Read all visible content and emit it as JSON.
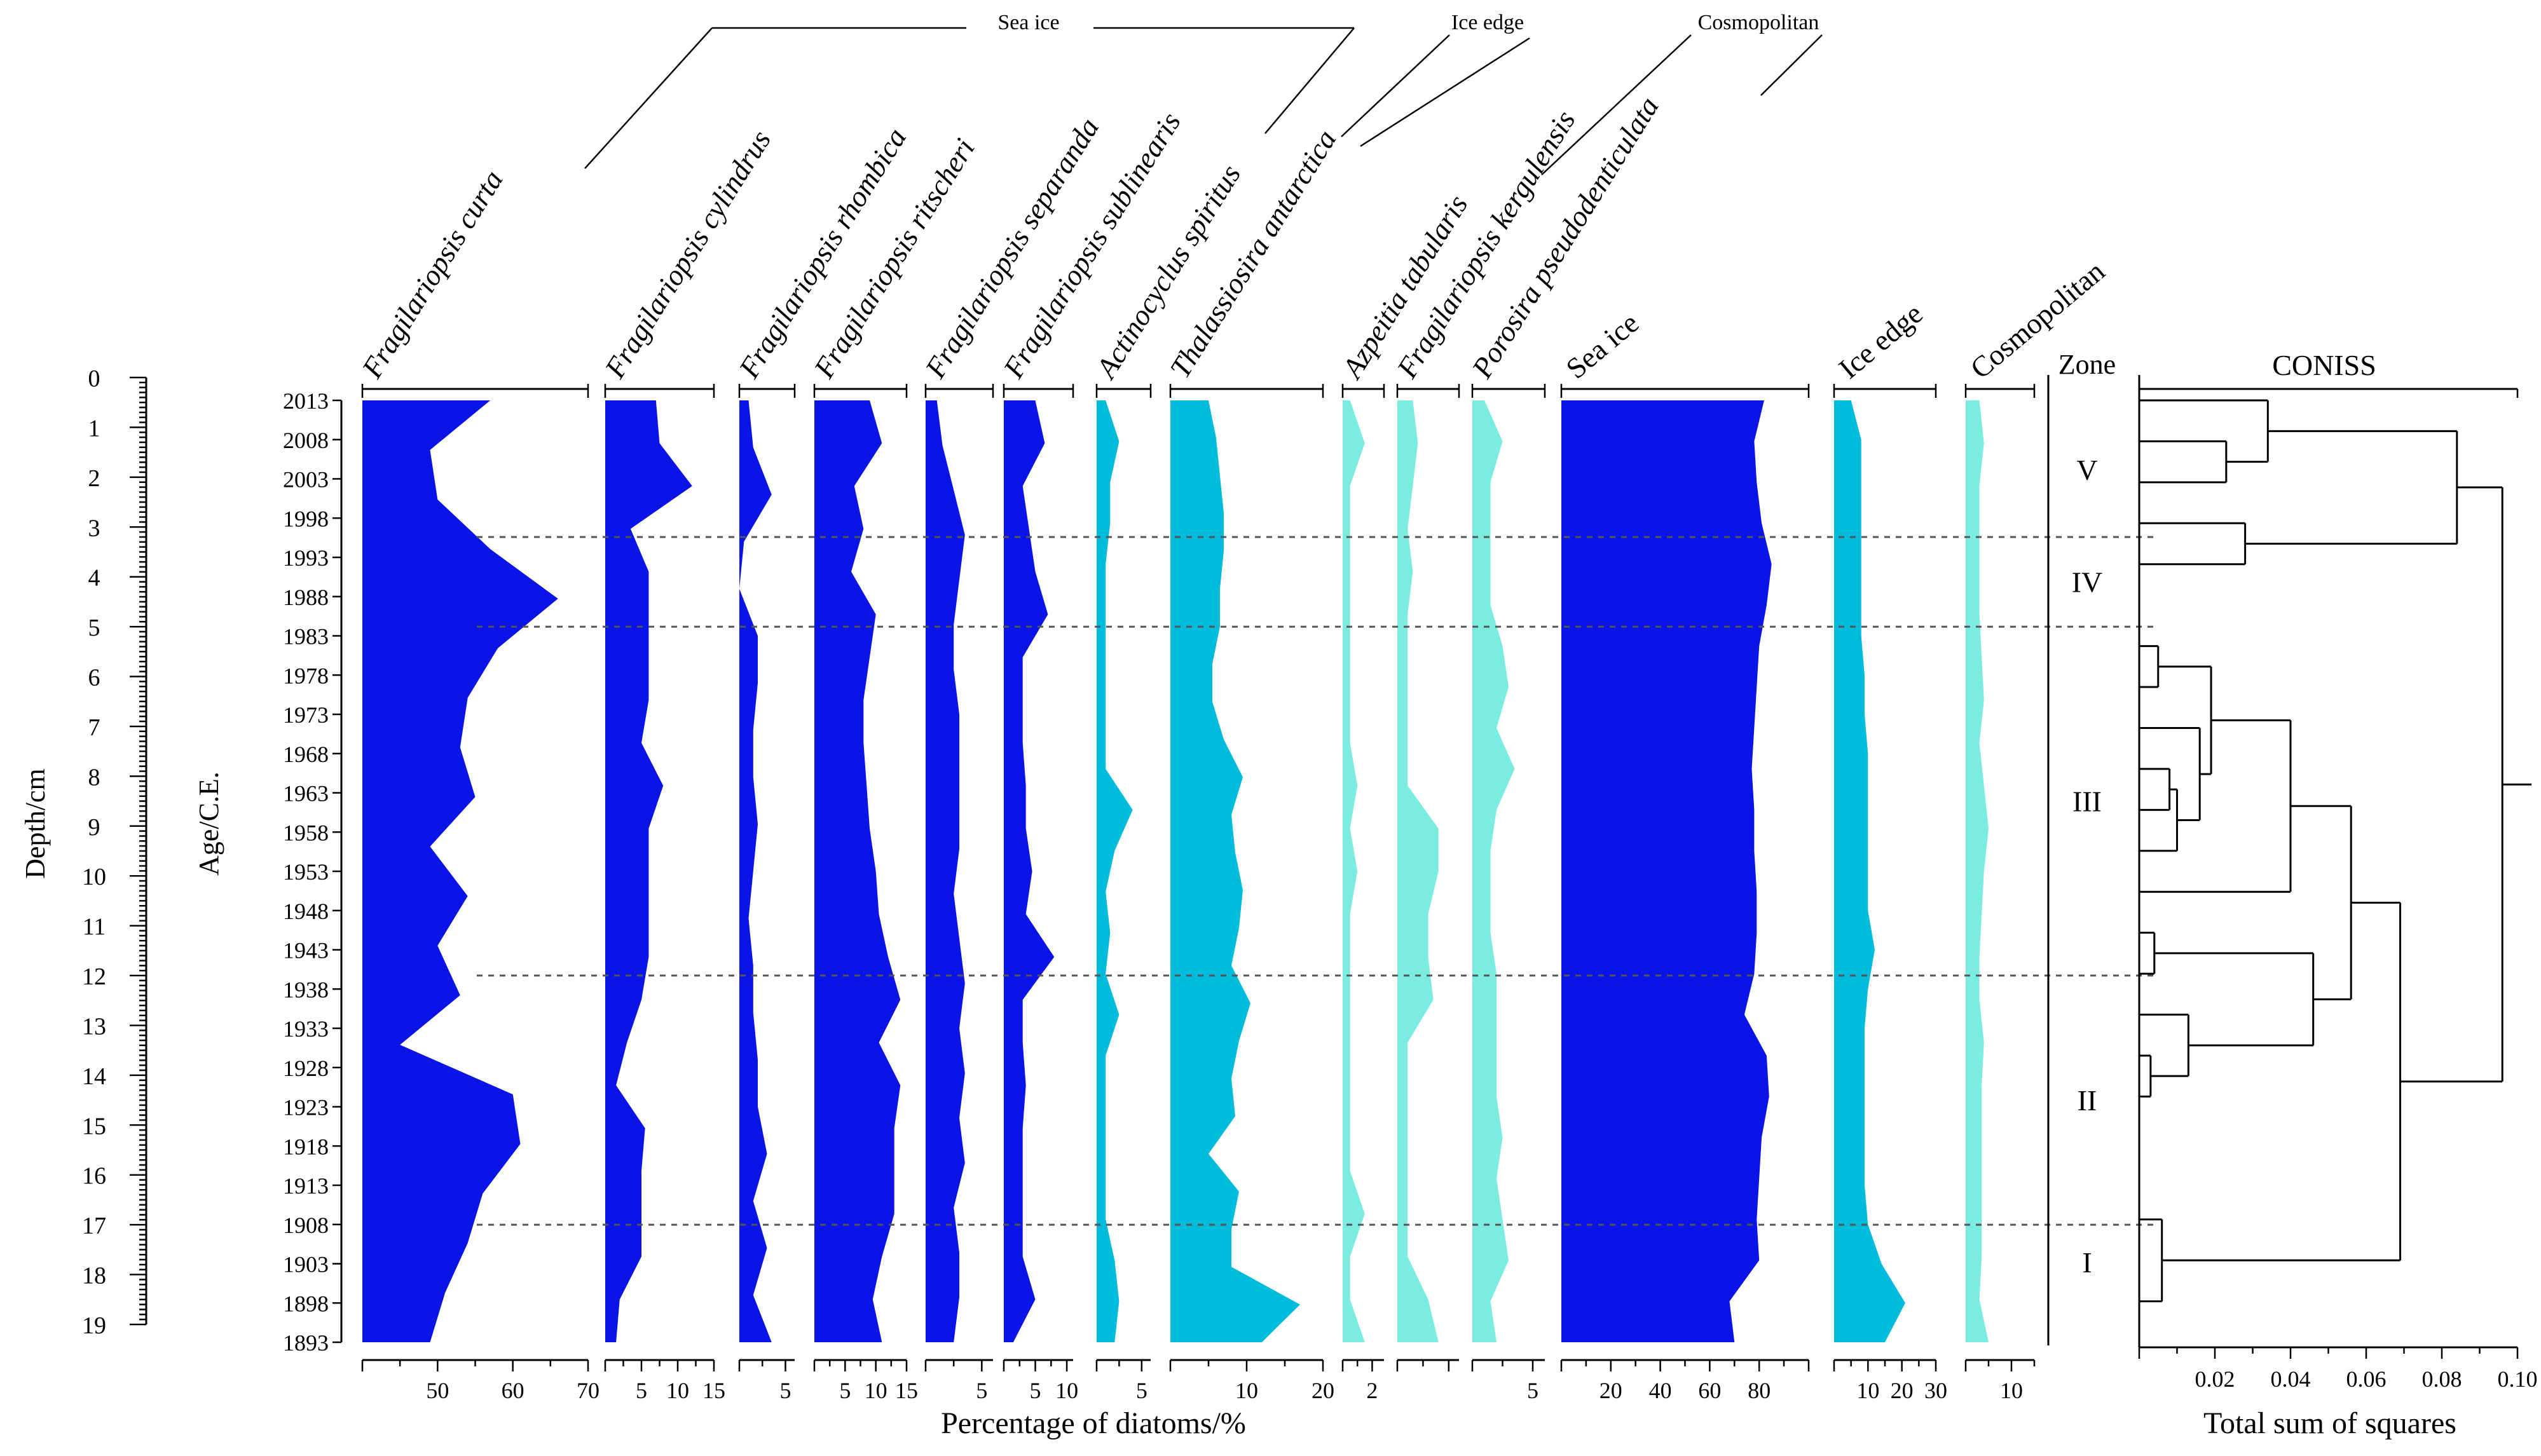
{
  "chart_data": {
    "type": "area",
    "depth_axis": {
      "label": "Depth/cm",
      "ticks": [
        0,
        1,
        2,
        3,
        4,
        5,
        6,
        7,
        8,
        9,
        10,
        11,
        12,
        13,
        14,
        15,
        16,
        17,
        18,
        19
      ]
    },
    "age_axis": {
      "label": "Age/C.E.",
      "ticks": [
        2013,
        2008,
        2003,
        1998,
        1993,
        1988,
        1983,
        1978,
        1973,
        1968,
        1963,
        1958,
        1953,
        1948,
        1943,
        1938,
        1933,
        1928,
        1923,
        1918,
        1913,
        1908,
        1903,
        1898,
        1893
      ]
    },
    "xlabel": "Percentage of diatoms/%",
    "group_headers": [
      "Sea ice",
      "Ice edge",
      "Cosmopolitan"
    ],
    "series": [
      {
        "name": "Fragilariopsis curta",
        "italic": true,
        "color": "#0a14e6",
        "xlim": [
          40,
          70
        ],
        "tick_labels": [
          "50",
          "60",
          "70"
        ],
        "values": [
          57,
          49,
          50,
          57,
          66,
          58,
          54,
          53,
          55,
          49,
          54,
          50,
          53,
          45,
          60,
          61,
          56,
          54,
          51,
          49
        ]
      },
      {
        "name": "Fragilariopsis cylindrus",
        "italic": true,
        "color": "#0a14e6",
        "xlim": [
          0,
          15
        ],
        "tick_labels": [
          "5",
          "10",
          "15"
        ],
        "values": [
          7,
          7.5,
          12,
          3.5,
          6,
          6,
          6,
          6,
          5,
          8,
          6,
          6,
          6,
          6,
          5,
          3,
          1.5,
          5.5,
          5,
          5,
          5,
          2,
          1.5
        ]
      },
      {
        "name": "Fragilariopsis rhombica",
        "italic": true,
        "color": "#0a14e6",
        "xlim": [
          0,
          6
        ],
        "tick_labels": [
          "5"
        ],
        "values": [
          1,
          1.5,
          3.5,
          0.5,
          0,
          2,
          2,
          1.5,
          1.5,
          2,
          1.5,
          1,
          1.5,
          1.5,
          2,
          2,
          3,
          1.5,
          3,
          1.5,
          3.5
        ]
      },
      {
        "name": "Fragilariopsis ritscheri",
        "italic": true,
        "color": "#0a14e6",
        "xlim": [
          0,
          15
        ],
        "tick_labels": [
          "5",
          "10",
          "15"
        ],
        "values": [
          9,
          11,
          6.5,
          8,
          6,
          10,
          9,
          8,
          8,
          8.5,
          9,
          10,
          10.5,
          12,
          14,
          10.5,
          14,
          13,
          13,
          13,
          11,
          9.5,
          11
        ]
      },
      {
        "name": "Fragilariopsis separanda",
        "italic": true,
        "color": "#0a14e6",
        "xlim": [
          0,
          6
        ],
        "tick_labels": [
          "5"
        ],
        "values": [
          1,
          1.5,
          2.5,
          3.5,
          3,
          2.5,
          2.5,
          3,
          3,
          3,
          3,
          2.5,
          3,
          3.5,
          3,
          3.5,
          3,
          3.5,
          2.5,
          3,
          3,
          2.5
        ]
      },
      {
        "name": "Fragilariopsis sublinearis",
        "italic": true,
        "color": "#0a14e6",
        "xlim": [
          0,
          11
        ],
        "tick_labels": [
          "5",
          "10"
        ],
        "values": [
          5,
          6.5,
          3,
          4,
          5,
          7,
          3,
          3,
          3,
          3.5,
          3.5,
          4.5,
          3.5,
          8,
          3,
          3,
          3.5,
          3,
          3,
          3,
          3,
          5,
          1.5
        ]
      },
      {
        "name": "Actinocyclus spiritus",
        "italic": true,
        "color": "#00bcdc",
        "xlim": [
          0,
          6
        ],
        "tick_labels": [
          "5"
        ],
        "values": [
          1,
          2.5,
          1.5,
          1.5,
          1,
          1,
          1,
          1,
          1,
          1,
          4,
          2,
          1,
          1.5,
          1,
          2.5,
          1,
          1,
          1,
          1,
          1,
          2,
          2.5,
          2
        ]
      },
      {
        "name": "Thalassiosira antarctica",
        "italic": true,
        "color": "#00bcdc",
        "xlim": [
          0,
          20
        ],
        "tick_labels": [
          "10",
          "20"
        ],
        "values": [
          5,
          6,
          6.5,
          7,
          7,
          6.5,
          6.5,
          5.5,
          5.5,
          7,
          9.5,
          8,
          8.5,
          9.5,
          9,
          8,
          10.5,
          9,
          8,
          8.5,
          5,
          9,
          8,
          8,
          17,
          12
        ]
      },
      {
        "name": "Azpeitia tabularis",
        "italic": true,
        "color": "#7aede0",
        "xlim": [
          0,
          2.8
        ],
        "tick_labels": [
          "2"
        ],
        "values": [
          0.5,
          1.5,
          0.5,
          0.5,
          0.5,
          0.5,
          0.5,
          0.5,
          0.5,
          1,
          0.5,
          1,
          0.5,
          0.5,
          0.5,
          0.5,
          0.5,
          0.5,
          0.5,
          1.5,
          0.5,
          0.5,
          1.5
        ]
      },
      {
        "name": "Fragilariopsis kergulensis",
        "italic": true,
        "color": "#7aede0",
        "xlim": [
          0,
          6
        ],
        "tick_labels": [],
        "values": [
          1.5,
          2,
          1.5,
          1,
          1.5,
          1,
          1,
          1,
          1,
          1,
          4,
          4,
          3,
          3,
          3.5,
          1,
          1,
          1,
          1,
          1,
          1,
          3,
          4
        ]
      },
      {
        "name": "Porosira pseudodenticulata",
        "italic": true,
        "color": "#7aede0",
        "xlim": [
          0,
          6
        ],
        "tick_labels": [
          "5"
        ],
        "values": [
          1,
          2.5,
          1.5,
          1.5,
          1.5,
          1.5,
          2.5,
          3,
          2,
          3.5,
          2,
          1.5,
          1.5,
          1.5,
          2,
          2,
          2,
          2,
          2.5,
          2,
          2.5,
          3,
          1.5,
          2
        ]
      },
      {
        "name": "Sea ice",
        "italic": false,
        "color": "#0a14e6",
        "xlim": [
          0,
          100
        ],
        "tick_labels": [
          "20",
          "40",
          "60",
          "80"
        ],
        "values": [
          82,
          78,
          79,
          81,
          85,
          83,
          80,
          79,
          78,
          77,
          78,
          78,
          79,
          79,
          78,
          74,
          83,
          84,
          81,
          80,
          79,
          80,
          68,
          70
        ]
      },
      {
        "name": "Ice edge",
        "italic": false,
        "color": "#00bcdc",
        "xlim": [
          0,
          30
        ],
        "tick_labels": [
          "10",
          "20",
          "30"
        ],
        "values": [
          5,
          8,
          8,
          8,
          8,
          8,
          8,
          9,
          9,
          10,
          10,
          10,
          10,
          10,
          12,
          10,
          9,
          9,
          9,
          9,
          9,
          10,
          14,
          21,
          15
        ]
      },
      {
        "name": "Cosmopolitan",
        "italic": false,
        "color": "#7aede0",
        "xlim": [
          0,
          15
        ],
        "tick_labels": [
          "10"
        ],
        "values": [
          3,
          4,
          3,
          3,
          3,
          3,
          3.5,
          4,
          3,
          4,
          5,
          4,
          3.5,
          3,
          3,
          4,
          3.5,
          3.5,
          3.5,
          3.5,
          3.5,
          3,
          5
        ]
      }
    ],
    "zones": [
      "V",
      "IV",
      "III",
      "II",
      "I"
    ],
    "zone_boundaries_depth": [
      3.2,
      5.0,
      12.0,
      17.0
    ],
    "zone_header": "Zone",
    "coniss": {
      "title": "CONISS",
      "xlabel": "Total sum of squares",
      "tick_labels": [
        "0.02",
        "0.04",
        "0.06",
        "0.08",
        "0.10"
      ],
      "xlim": [
        0,
        0.1
      ]
    }
  }
}
